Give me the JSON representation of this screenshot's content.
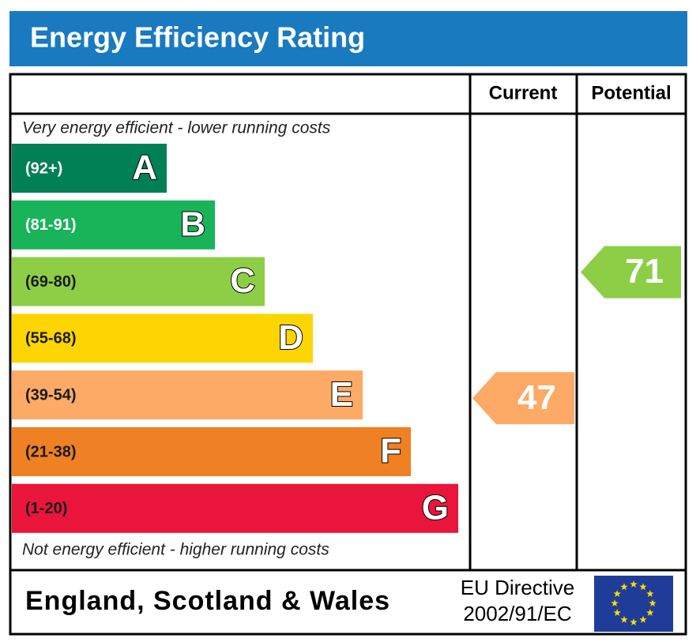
{
  "title": "Energy Efficiency Rating",
  "headers": {
    "current": "Current",
    "potential": "Potential"
  },
  "top_note": "Very energy efficient - lower running costs",
  "bottom_note": "Not energy efficient - higher running costs",
  "bands": [
    {
      "range": "(92+)",
      "letter": "A",
      "color": "#008054",
      "text_color": "#ffffff"
    },
    {
      "range": "(81-91)",
      "letter": "B",
      "color": "#19b459",
      "text_color": "#ffffff"
    },
    {
      "range": "(69-80)",
      "letter": "C",
      "color": "#8dce46",
      "text_color": "#1a1a1a"
    },
    {
      "range": "(55-68)",
      "letter": "D",
      "color": "#ffd500",
      "text_color": "#1a1a1a"
    },
    {
      "range": "(39-54)",
      "letter": "E",
      "color": "#fcaa65",
      "text_color": "#1a1a1a"
    },
    {
      "range": "(21-38)",
      "letter": "F",
      "color": "#ef8023",
      "text_color": "#1a1a1a"
    },
    {
      "range": "(1-20)",
      "letter": "G",
      "color": "#e9153b",
      "text_color": "#1a1a1a"
    }
  ],
  "current": 47,
  "potential": 71,
  "footer": {
    "region": "England, Scotland & Wales",
    "directive_line1": "EU Directive",
    "directive_line2": "2002/91/EC"
  }
}
